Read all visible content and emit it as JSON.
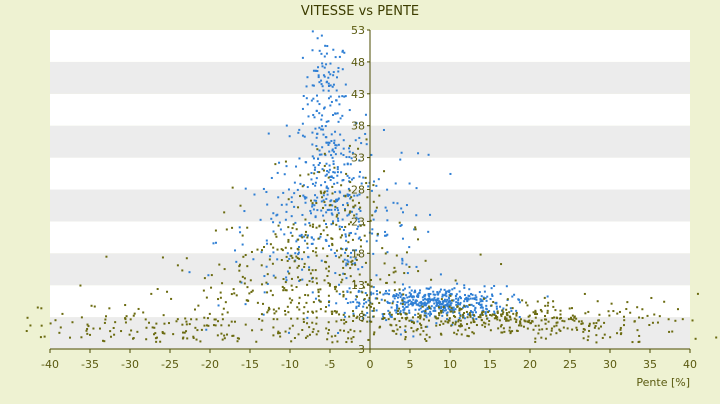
{
  "chart_data": {
    "type": "scatter",
    "title": "VITESSE vs PENTE",
    "xlabel": "Pente [%]",
    "ylabel": "",
    "xlim": [
      -40,
      40
    ],
    "ylim": [
      3,
      53
    ],
    "x_ticks": [
      "-40",
      "-35",
      "-30",
      "-25",
      "-20",
      "-15",
      "-10",
      "-5",
      "0",
      "5",
      "10",
      "15",
      "20",
      "25",
      "30",
      "35",
      "40"
    ],
    "y_ticks": [
      "3",
      "8",
      "13",
      "18",
      "23",
      "28",
      "33",
      "38",
      "43",
      "48",
      "53"
    ],
    "grid": "alternating horizontal bands",
    "legend": "none",
    "colors": {
      "background": "#eef2d2",
      "band_light": "#ffffff",
      "band_dark": "#ececec",
      "axis": "#4b4b00",
      "series_blue": "#2f7fd4",
      "series_olive": "#6b6b10",
      "text": "#5a5a10"
    },
    "series": [
      {
        "color": "#2f7fd4",
        "clusters": [
          {
            "cx": -5.5,
            "cy": 43,
            "sx": 1.4,
            "sy": 4.5,
            "n": 110
          },
          {
            "cx": -5,
            "cy": 31,
            "sx": 2.2,
            "sy": 5,
            "n": 170
          },
          {
            "cx": -8,
            "cy": 20,
            "sx": 5.5,
            "sy": 5.5,
            "n": 170
          },
          {
            "cx": -1.5,
            "cy": 20,
            "sx": 1.5,
            "sy": 7,
            "n": 50
          },
          {
            "cx": 8,
            "cy": 10.2,
            "sx": 4.5,
            "sy": 1.3,
            "n": 450
          },
          {
            "cx": 3.5,
            "cy": 22,
            "sx": 2.5,
            "sy": 7,
            "n": 45
          }
        ]
      },
      {
        "color": "#6b6b10",
        "clusters": [
          {
            "cx": -8,
            "cy": 12,
            "sx": 7.5,
            "sy": 6,
            "n": 380
          },
          {
            "cx": -5,
            "cy": 26,
            "sx": 3,
            "sy": 5,
            "n": 90
          },
          {
            "cx": 14,
            "cy": 7.6,
            "sx": 8,
            "sy": 1.2,
            "n": 320
          },
          {
            "cx": -28,
            "cy": 6.5,
            "sx": 8,
            "sy": 2,
            "n": 110
          },
          {
            "cx": 28,
            "cy": 7,
            "sx": 7,
            "sy": 2.2,
            "n": 90
          }
        ]
      }
    ]
  }
}
